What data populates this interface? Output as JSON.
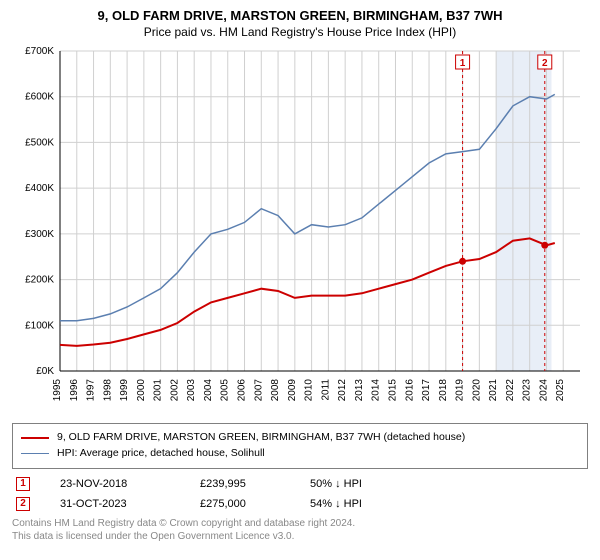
{
  "title": "9, OLD FARM DRIVE, MARSTON GREEN, BIRMINGHAM, B37 7WH",
  "subtitle": "Price paid vs. HM Land Registry's House Price Index (HPI)",
  "chart": {
    "type": "line",
    "background_color": "#ffffff",
    "grid_color": "#d0d0d0",
    "axis_color": "#000000",
    "text_color": "#000000",
    "label_fontsize": 10,
    "xlim": [
      1995,
      2026
    ],
    "ylim": [
      0,
      700000
    ],
    "ytick_step": 100000,
    "xtick_step": 1,
    "y_prefix": "£",
    "x_years": [
      1995,
      1996,
      1997,
      1998,
      1999,
      2000,
      2001,
      2002,
      2003,
      2004,
      2005,
      2006,
      2007,
      2008,
      2009,
      2010,
      2011,
      2012,
      2013,
      2014,
      2015,
      2016,
      2017,
      2018,
      2019,
      2020,
      2021,
      2022,
      2023,
      2024,
      2025
    ],
    "series": [
      {
        "name": "9, OLD FARM DRIVE, MARSTON GREEN, BIRMINGHAM, B37 7WH (detached house)",
        "color": "#cc0000",
        "line_width": 2,
        "data": [
          {
            "x": 1995,
            "y": 57000
          },
          {
            "x": 1996,
            "y": 55000
          },
          {
            "x": 1997,
            "y": 58000
          },
          {
            "x": 1998,
            "y": 62000
          },
          {
            "x": 1999,
            "y": 70000
          },
          {
            "x": 2000,
            "y": 80000
          },
          {
            "x": 2001,
            "y": 90000
          },
          {
            "x": 2002,
            "y": 105000
          },
          {
            "x": 2003,
            "y": 130000
          },
          {
            "x": 2004,
            "y": 150000
          },
          {
            "x": 2005,
            "y": 160000
          },
          {
            "x": 2006,
            "y": 170000
          },
          {
            "x": 2007,
            "y": 180000
          },
          {
            "x": 2008,
            "y": 175000
          },
          {
            "x": 2009,
            "y": 160000
          },
          {
            "x": 2010,
            "y": 165000
          },
          {
            "x": 2011,
            "y": 165000
          },
          {
            "x": 2012,
            "y": 165000
          },
          {
            "x": 2013,
            "y": 170000
          },
          {
            "x": 2014,
            "y": 180000
          },
          {
            "x": 2015,
            "y": 190000
          },
          {
            "x": 2016,
            "y": 200000
          },
          {
            "x": 2017,
            "y": 215000
          },
          {
            "x": 2018,
            "y": 230000
          },
          {
            "x": 2019,
            "y": 240000
          },
          {
            "x": 2020,
            "y": 245000
          },
          {
            "x": 2021,
            "y": 260000
          },
          {
            "x": 2022,
            "y": 285000
          },
          {
            "x": 2023,
            "y": 290000
          },
          {
            "x": 2024,
            "y": 275000
          },
          {
            "x": 2024.5,
            "y": 280000
          }
        ]
      },
      {
        "name": "HPI: Average price, detached house, Solihull",
        "color": "#5b7fb0",
        "line_width": 1.5,
        "data": [
          {
            "x": 1995,
            "y": 110000
          },
          {
            "x": 1996,
            "y": 110000
          },
          {
            "x": 1997,
            "y": 115000
          },
          {
            "x": 1998,
            "y": 125000
          },
          {
            "x": 1999,
            "y": 140000
          },
          {
            "x": 2000,
            "y": 160000
          },
          {
            "x": 2001,
            "y": 180000
          },
          {
            "x": 2002,
            "y": 215000
          },
          {
            "x": 2003,
            "y": 260000
          },
          {
            "x": 2004,
            "y": 300000
          },
          {
            "x": 2005,
            "y": 310000
          },
          {
            "x": 2006,
            "y": 325000
          },
          {
            "x": 2007,
            "y": 355000
          },
          {
            "x": 2008,
            "y": 340000
          },
          {
            "x": 2009,
            "y": 300000
          },
          {
            "x": 2010,
            "y": 320000
          },
          {
            "x": 2011,
            "y": 315000
          },
          {
            "x": 2012,
            "y": 320000
          },
          {
            "x": 2013,
            "y": 335000
          },
          {
            "x": 2014,
            "y": 365000
          },
          {
            "x": 2015,
            "y": 395000
          },
          {
            "x": 2016,
            "y": 425000
          },
          {
            "x": 2017,
            "y": 455000
          },
          {
            "x": 2018,
            "y": 475000
          },
          {
            "x": 2019,
            "y": 480000
          },
          {
            "x": 2020,
            "y": 485000
          },
          {
            "x": 2021,
            "y": 530000
          },
          {
            "x": 2022,
            "y": 580000
          },
          {
            "x": 2023,
            "y": 600000
          },
          {
            "x": 2024,
            "y": 595000
          },
          {
            "x": 2024.5,
            "y": 605000
          }
        ]
      }
    ],
    "markers": [
      {
        "id": "1",
        "x": 2019,
        "color": "#cc0000",
        "band_start": 2021,
        "band_end": 2024.3,
        "band_color": "#e8eef7",
        "date": "23-NOV-2018",
        "price": "£239,995",
        "pct": "50%",
        "arrow": "↓",
        "suffix": "HPI",
        "dot_y": 239995
      },
      {
        "id": "2",
        "x": 2023.9,
        "color": "#cc0000",
        "date": "31-OCT-2023",
        "price": "£275,000",
        "pct": "54%",
        "arrow": "↓",
        "suffix": "HPI",
        "dot_y": 275000
      }
    ]
  },
  "footer_line1": "Contains HM Land Registry data © Crown copyright and database right 2024.",
  "footer_line2": "This data is licensed under the Open Government Licence v3.0."
}
